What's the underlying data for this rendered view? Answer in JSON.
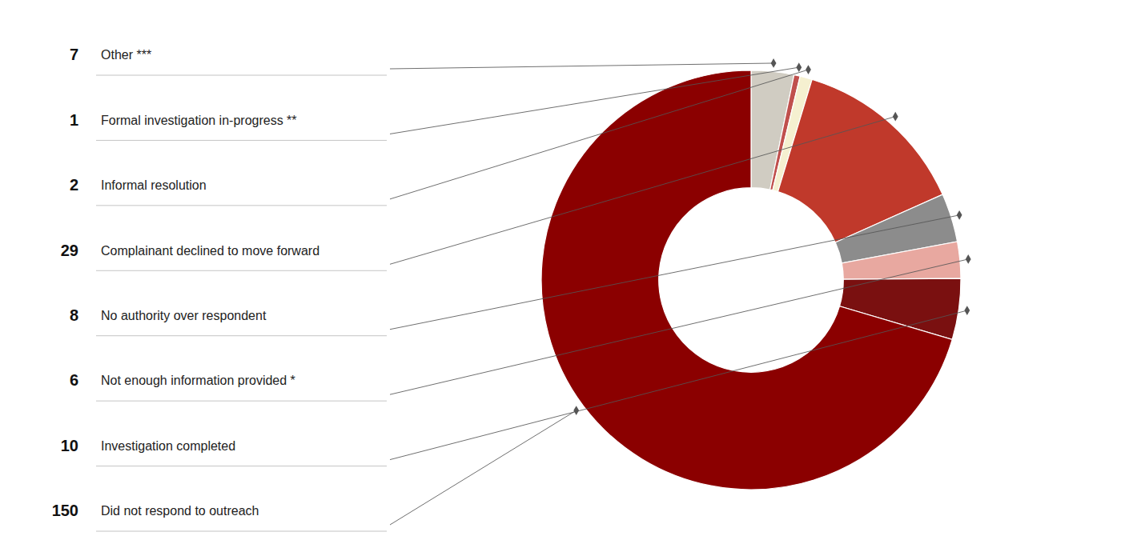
{
  "chart_data": {
    "type": "donut",
    "categories": [
      "Other ***",
      "Formal investigation in-progress **",
      "Informal resolution",
      "Complainant declined to move forward",
      "No authority over respondent",
      "Not enough information provided *",
      "Investigation completed",
      "Did not respond to outreach"
    ],
    "values": [
      7,
      1,
      2,
      29,
      8,
      6,
      10,
      150
    ],
    "colors": [
      "#d0ccc2",
      "#c0504d",
      "#f5f0d0",
      "#c0392b",
      "#8c8c8c",
      "#e8a8a0",
      "#7a1010",
      "#8b0000"
    ],
    "data_labels": true
  }
}
